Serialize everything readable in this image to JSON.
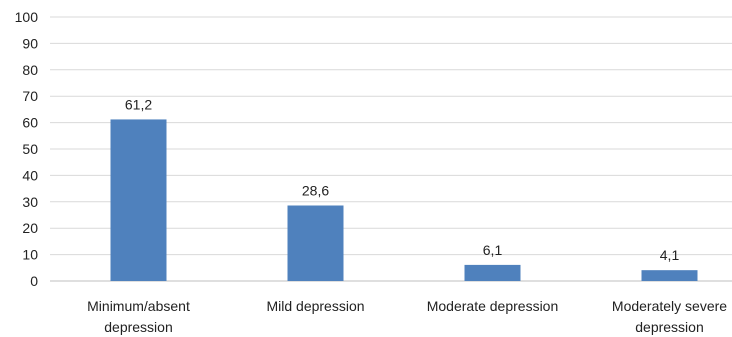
{
  "chart_data": {
    "type": "bar",
    "title": "",
    "xlabel": "",
    "ylabel": "",
    "categories": [
      [
        "Minimum/absent",
        "depression"
      ],
      [
        "Mild depression"
      ],
      [
        "Moderate depression"
      ],
      [
        "Moderately severe",
        "depression"
      ]
    ],
    "values": [
      61.2,
      28.6,
      6.1,
      4.1
    ],
    "data_labels": [
      "61,2",
      "28,6",
      "6,1",
      "4,1"
    ],
    "ylim": [
      0,
      100
    ],
    "yticks": [
      0,
      10,
      20,
      30,
      40,
      50,
      60,
      70,
      80,
      90,
      100
    ],
    "grid": true,
    "legend": "none",
    "colors": {
      "bar": "#4F81BD",
      "grid": "#D9D9D9",
      "axis": "#BFBFBF",
      "text": "#222222"
    }
  }
}
